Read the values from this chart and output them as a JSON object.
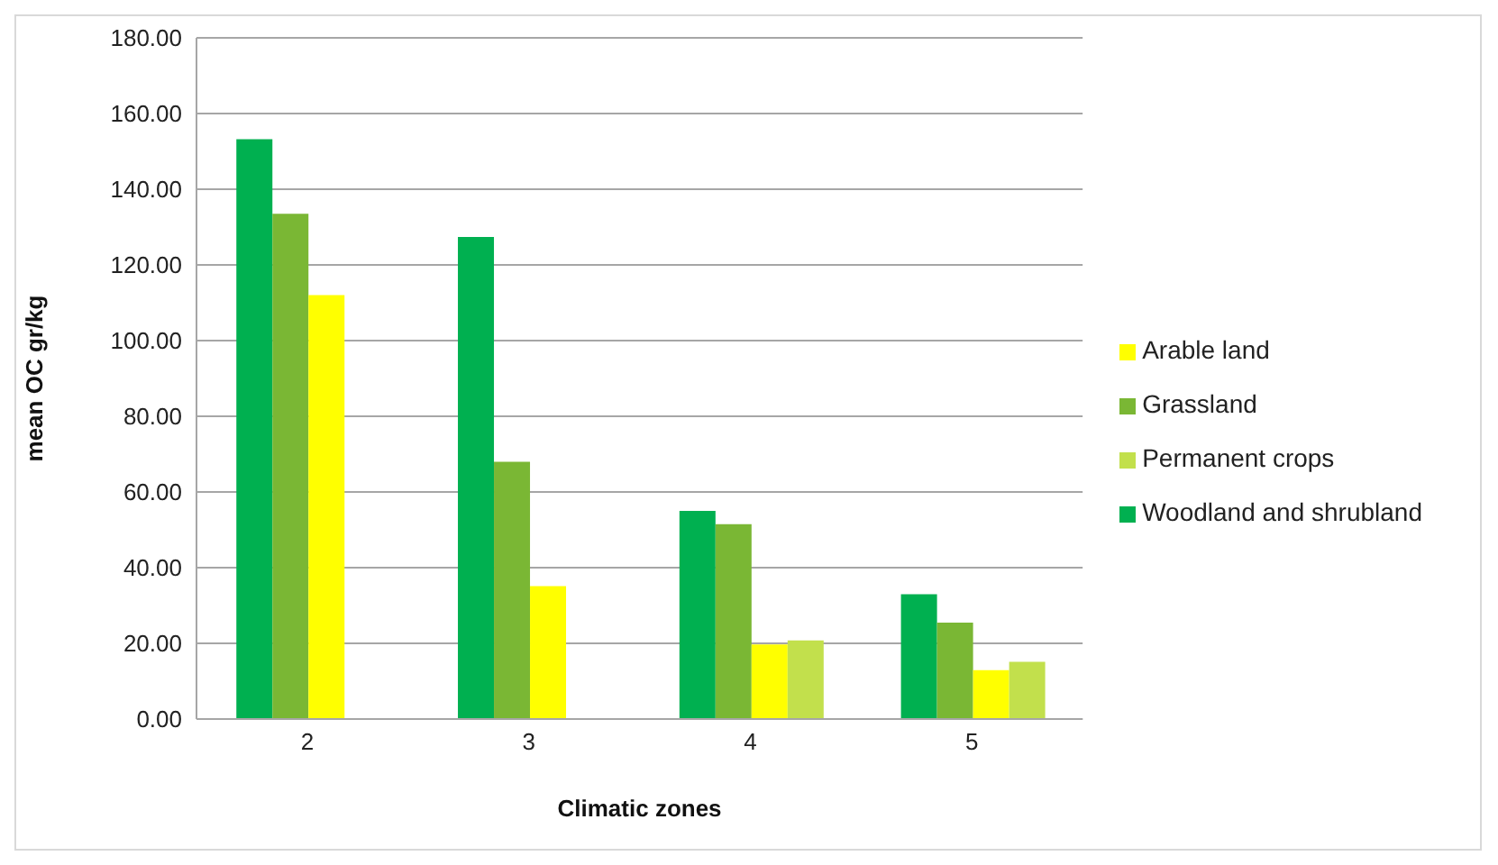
{
  "chart_data": {
    "type": "bar",
    "xlabel": "Climatic zones",
    "ylabel": "mean OC gr/kg",
    "categories": [
      "2",
      "3",
      "4",
      "5"
    ],
    "series": [
      {
        "name": "Woodland and shrubland",
        "color": "#00b050",
        "values": [
          153.2,
          127.4,
          55,
          33
        ]
      },
      {
        "name": "Grassland",
        "color": "#7ab734",
        "values": [
          133.5,
          68,
          51.5,
          25.5
        ]
      },
      {
        "name": "Arable land",
        "color": "#ffff00",
        "values": [
          112,
          35.1,
          19.7,
          12.9
        ]
      },
      {
        "name": "Permanent crops",
        "color": "#c2e04c",
        "values": [
          null,
          null,
          20.8,
          15.1
        ]
      }
    ],
    "ylim": [
      0,
      180
    ],
    "yticks": [
      {
        "value": 0,
        "label": "0.00"
      },
      {
        "value": 20,
        "label": "20.00"
      },
      {
        "value": 40,
        "label": "40.00"
      },
      {
        "value": 60,
        "label": "60.00"
      },
      {
        "value": 80,
        "label": "80.00"
      },
      {
        "value": 100,
        "label": "100.00"
      },
      {
        "value": 120,
        "label": "120.00"
      },
      {
        "value": 140,
        "label": "140.00"
      },
      {
        "value": 160,
        "label": "160.00"
      },
      {
        "value": 180,
        "label": "180.00"
      }
    ],
    "grid": "y",
    "legend": "right"
  }
}
